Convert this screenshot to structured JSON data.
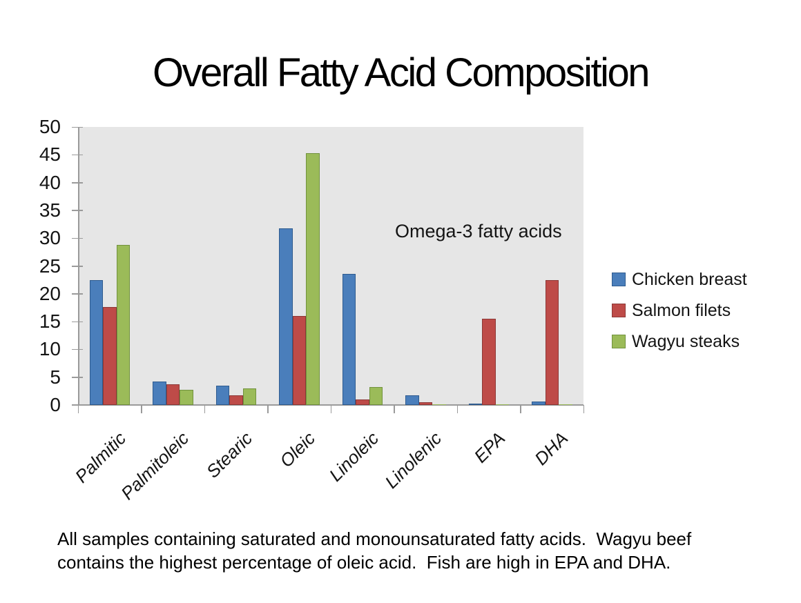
{
  "slide": {
    "title": "Overall Fatty Acid Composition",
    "caption_line1": "All samples containing saturated and monounsaturated fatty acids.  Wagyu beef",
    "caption_line2": "contains the highest percentage of oleic acid.  Fish are high in EPA and DHA."
  },
  "chart_data": {
    "type": "bar",
    "title": "Overall Fatty Acid Composition",
    "xlabel": "",
    "ylabel": "",
    "categories": [
      "Palmitic",
      "Palmitoleic",
      "Stearic",
      "Oleic",
      "Linoleic",
      "Linolenic",
      "EPA",
      "DHA"
    ],
    "series": [
      {
        "name": "Chicken breast",
        "color": "#4A7EBB",
        "border": "#2E5B8F",
        "values": [
          22.5,
          4.2,
          3.5,
          31.8,
          23.6,
          1.7,
          0.3,
          0.6
        ]
      },
      {
        "name": "Salmon filets",
        "color": "#BE4B48",
        "border": "#8C3836",
        "values": [
          17.6,
          3.7,
          1.7,
          16.0,
          1.0,
          0.5,
          15.5,
          22.5
        ]
      },
      {
        "name": "Wagyu steaks",
        "color": "#9BBB59",
        "border": "#71923D",
        "values": [
          28.8,
          2.7,
          3.0,
          45.3,
          3.2,
          0.1,
          0.1,
          0.1
        ]
      }
    ],
    "ylim": [
      0,
      50
    ],
    "ytick_step": 5,
    "yticks": [
      0,
      5,
      10,
      15,
      20,
      25,
      30,
      35,
      40,
      45,
      50
    ],
    "annotation": "Omega-3 fatty acids",
    "legend_position": "right",
    "grid": false,
    "plot_background": "#E6E6E6",
    "axis_color": "#9A9A9A",
    "text_color": "#141414"
  }
}
